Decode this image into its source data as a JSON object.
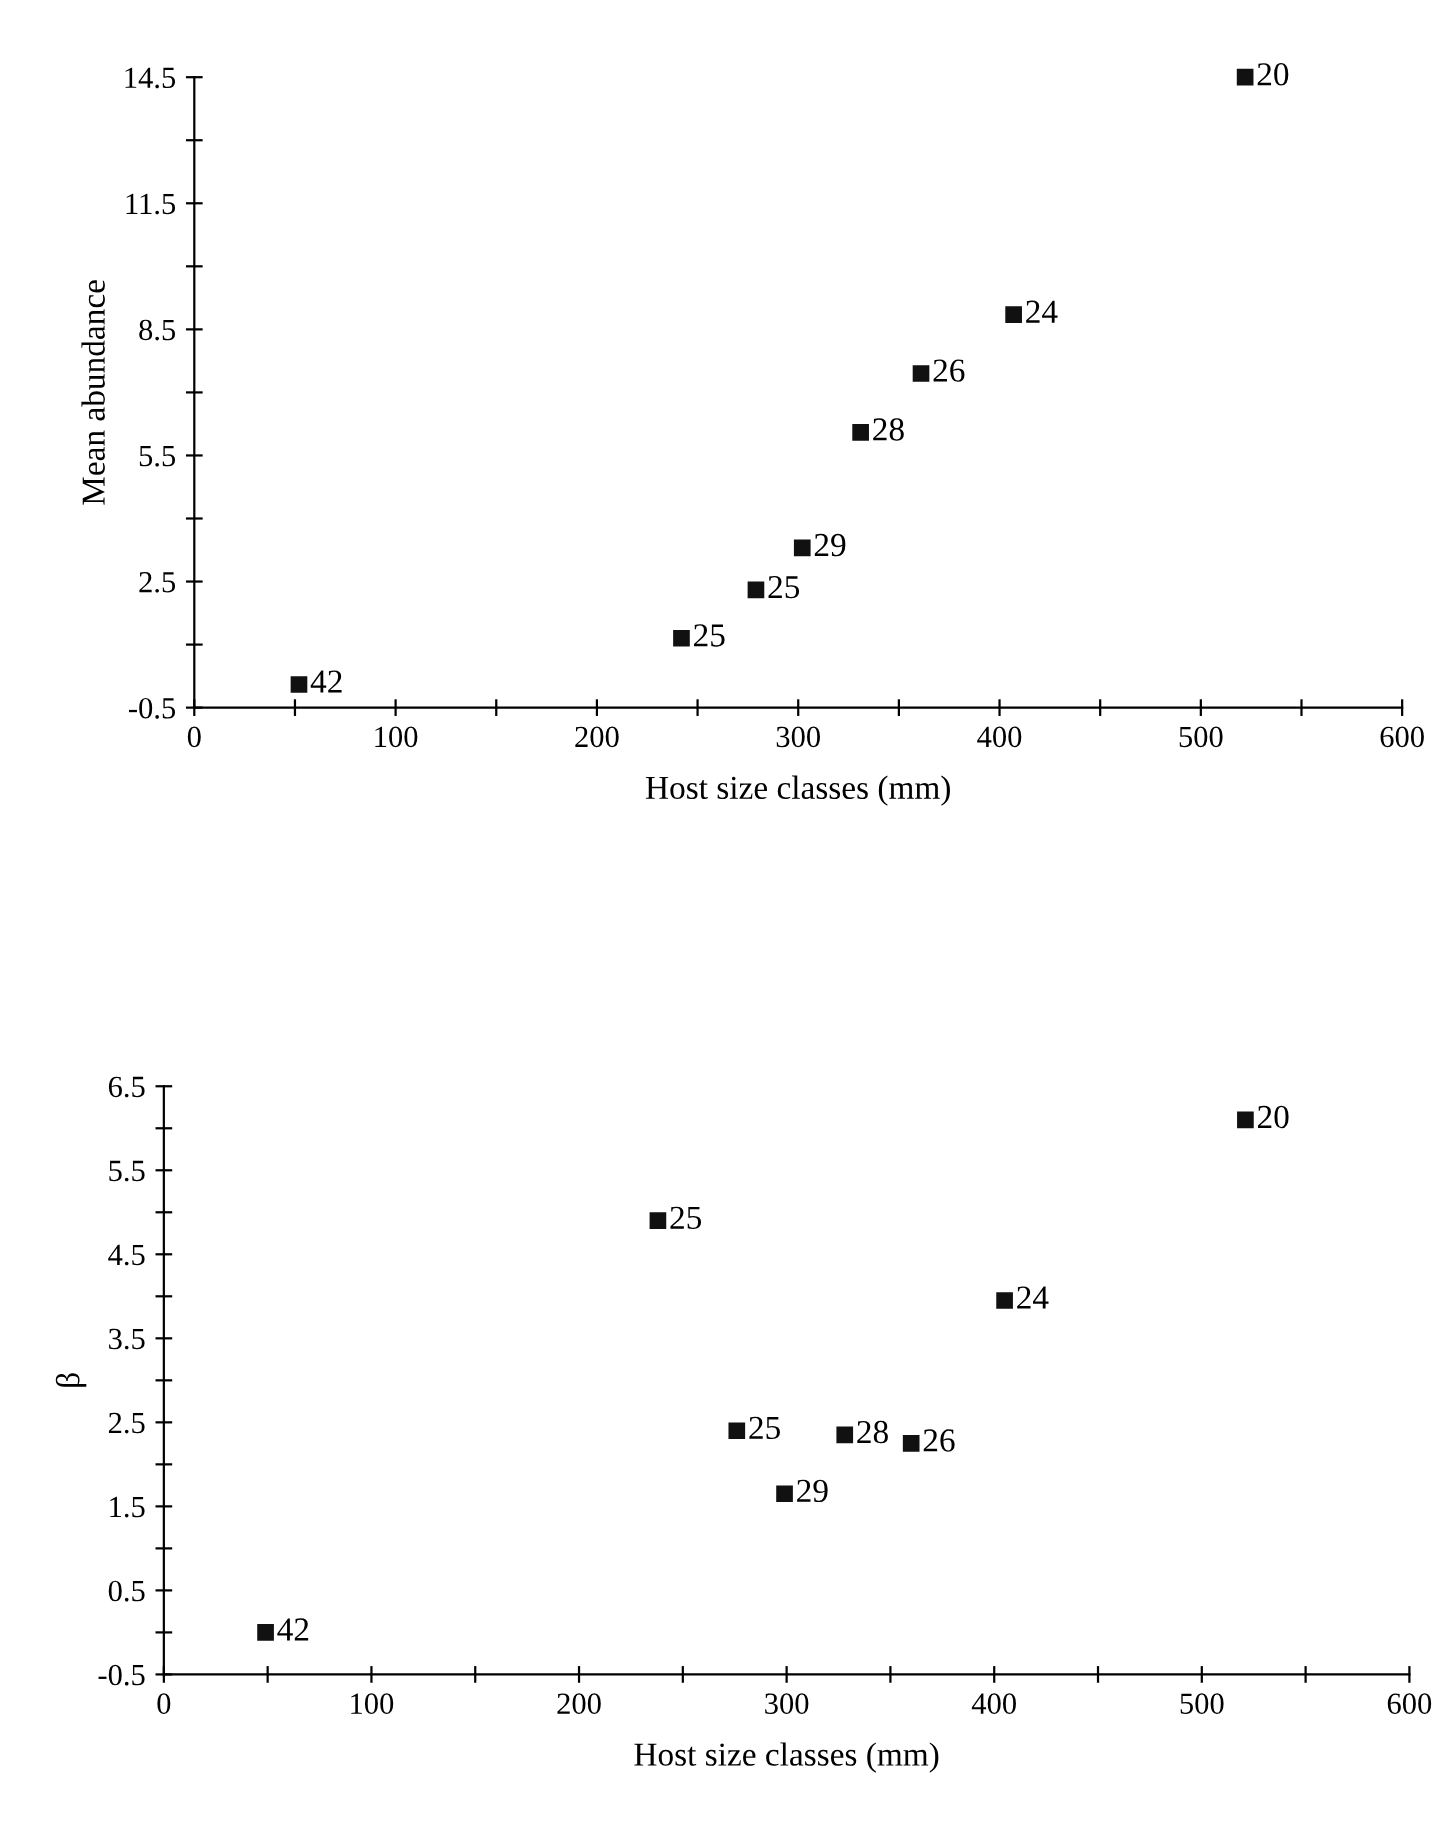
{
  "chart_data": [
    {
      "type": "scatter",
      "xlabel": "Host size classes (mm)",
      "ylabel": "Mean abundance",
      "marker": "square",
      "grid": false,
      "legend": false,
      "series": [
        {
          "color": "#111111",
          "x": [
            52,
            242,
            279,
            302,
            331,
            361,
            407,
            522
          ],
          "values": [
            0.05,
            1.15,
            2.3,
            3.3,
            6.05,
            7.45,
            8.85,
            14.5
          ]
        }
      ],
      "xlim": [
        0,
        600
      ],
      "xticks": [
        0,
        {
          "value": 50,
          "label": null
        },
        100,
        {
          "value": 150,
          "label": null
        },
        200,
        {
          "value": 250,
          "label": null
        },
        300,
        {
          "value": 350,
          "label": null
        },
        400,
        {
          "value": 450,
          "label": null
        },
        500,
        {
          "value": 550,
          "label": null
        },
        600
      ],
      "ylim": [
        -0.5,
        14.5
      ],
      "yticks": [
        -0.5,
        {
          "value": 1,
          "label": null
        },
        2.5,
        {
          "value": 4,
          "label": null
        },
        5.5,
        {
          "value": 7,
          "label": null
        },
        8.5,
        {
          "value": 10,
          "label": null
        },
        11.5,
        {
          "value": 13,
          "label": null
        },
        14.5
      ],
      "annotations": [
        {
          "text": "42",
          "x": 52,
          "y": 0.05
        },
        {
          "text": "25",
          "x": 242,
          "y": 1.15
        },
        {
          "text": "25",
          "x": 279,
          "y": 2.3
        },
        {
          "text": "29",
          "x": 302,
          "y": 3.3
        },
        {
          "text": "28",
          "x": 331,
          "y": 6.05
        },
        {
          "text": "26",
          "x": 361,
          "y": 7.45
        },
        {
          "text": "24",
          "x": 407,
          "y": 8.85
        },
        {
          "text": "20",
          "x": 522,
          "y": 14.5
        }
      ]
    },
    {
      "type": "scatter",
      "xlabel": "Host size classes (mm)",
      "ylabel": "β",
      "marker": "square",
      "grid": false,
      "legend": false,
      "series": [
        {
          "color": "#111111",
          "x": [
            49,
            238,
            276,
            299,
            328,
            360,
            405,
            521
          ],
          "values": [
            0.0,
            4.9,
            2.4,
            1.65,
            2.35,
            2.25,
            3.95,
            6.1
          ]
        }
      ],
      "xlim": [
        0,
        600
      ],
      "xticks": [
        0,
        {
          "value": 50,
          "label": null
        },
        100,
        {
          "value": 150,
          "label": null
        },
        200,
        {
          "value": 250,
          "label": null
        },
        300,
        {
          "value": 350,
          "label": null
        },
        400,
        {
          "value": 450,
          "label": null
        },
        500,
        {
          "value": 550,
          "label": null
        },
        600
      ],
      "ylim": [
        -0.5,
        6.5
      ],
      "yticks": [
        -0.5,
        {
          "value": 0,
          "label": null
        },
        0.5,
        {
          "value": 1,
          "label": null
        },
        1.5,
        {
          "value": 2,
          "label": null
        },
        2.5,
        {
          "value": 3,
          "label": null
        },
        3.5,
        {
          "value": 4,
          "label": null
        },
        4.5,
        {
          "value": 5,
          "label": null
        },
        5.5,
        {
          "value": 6,
          "label": null
        },
        6.5
      ],
      "annotations": [
        {
          "text": "42",
          "x": 49,
          "y": 0.0
        },
        {
          "text": "25",
          "x": 238,
          "y": 4.9
        },
        {
          "text": "25",
          "x": 276,
          "y": 2.4
        },
        {
          "text": "29",
          "x": 299,
          "y": 1.65
        },
        {
          "text": "28",
          "x": 328,
          "y": 2.35
        },
        {
          "text": "26",
          "x": 360,
          "y": 2.25
        },
        {
          "text": "24",
          "x": 405,
          "y": 3.95
        },
        {
          "text": "20",
          "x": 521,
          "y": 6.1
        }
      ]
    }
  ]
}
